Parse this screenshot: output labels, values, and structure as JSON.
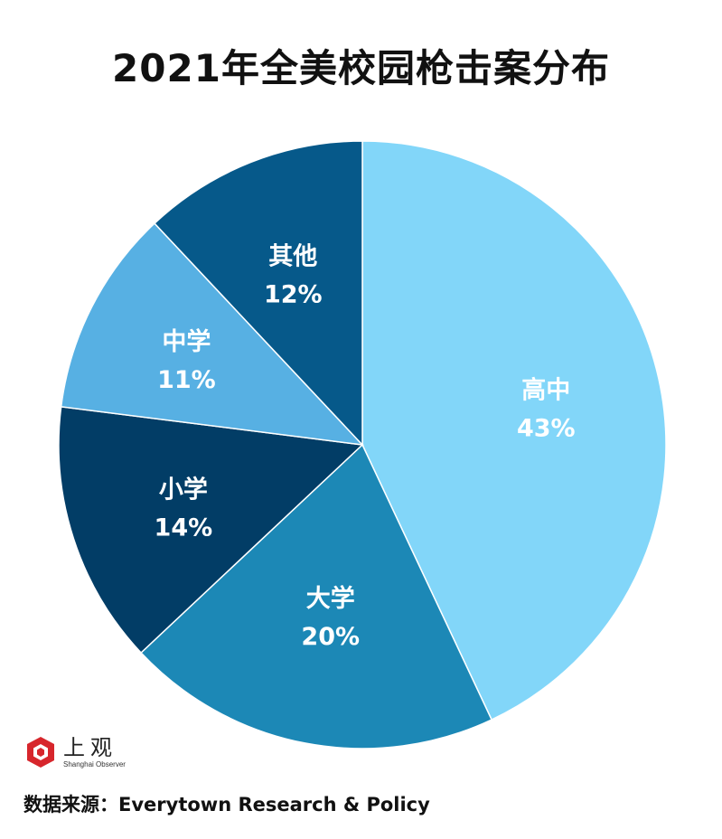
{
  "chart_data": {
    "type": "pie",
    "title": "2021年全美校园枪击案分布",
    "start_angle_deg": 0,
    "direction": "clockwise",
    "slices": [
      {
        "label": "高中",
        "value": 43,
        "value_label": "43%",
        "color": "#82d6f9"
      },
      {
        "label": "大学",
        "value": 20,
        "value_label": "20%",
        "color": "#1c88b6"
      },
      {
        "label": "小学",
        "value": 14,
        "value_label": "14%",
        "color": "#023d66"
      },
      {
        "label": "中学",
        "value": 11,
        "value_label": "11%",
        "color": "#57b0e3"
      },
      {
        "label": "其他",
        "value": 12,
        "value_label": "12%",
        "color": "#06598a"
      }
    ]
  },
  "logo": {
    "cn": "上观",
    "en": "Shanghai Observer",
    "color": "#d7262c"
  },
  "source": "数据来源：Everytown Research & Policy"
}
